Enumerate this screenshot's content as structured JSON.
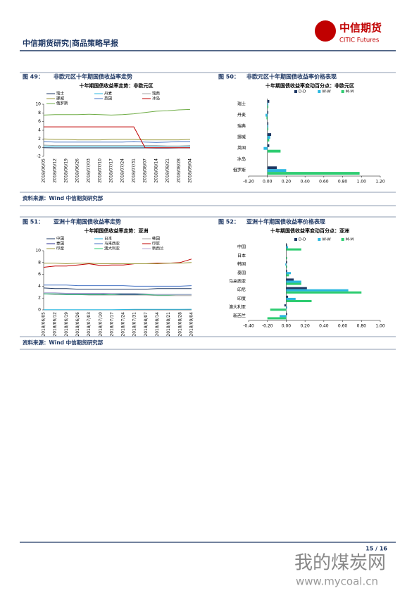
{
  "header": {
    "title": "中信期货研究|商品策略早报",
    "logo_cn": "中信期货",
    "logo_en": "CITIC Futures"
  },
  "figures": [
    {
      "label": "图 49：",
      "caption": "非欧元区十年期国债收益率走势"
    },
    {
      "label": "图 50：",
      "caption": "非欧元区十年期国债收益率价格表现"
    },
    {
      "label": "图 51：",
      "caption": "亚洲十年期国债收益率走势"
    },
    {
      "label": "图 52：",
      "caption": "亚洲十年期国债收益率价格表现"
    }
  ],
  "sources": [
    "资料来源：Wind 中信期货研究部",
    "资料来源：Wind 中信期货研究部"
  ],
  "page": "15 / 16",
  "watermark": {
    "cn": "我的煤炭网",
    "url": "www.mycoal.cn"
  },
  "chart_data": [
    {
      "type": "line",
      "title": "十年期国债收益率走势：非欧元区",
      "legend": "top",
      "categories": [
        "2018/06/05",
        "2018/06/12",
        "2018/06/19",
        "2018/06/26",
        "2018/07/03",
        "2018/07/10",
        "2018/07/17",
        "2018/07/24",
        "2018/07/31",
        "2018/08/07",
        "2018/08/14",
        "2018/08/21",
        "2018/08/28",
        "2018/09/04"
      ],
      "ylim": [
        -2,
        10
      ],
      "yticks": [
        -2,
        0,
        2,
        4,
        6,
        8,
        10
      ],
      "series": [
        {
          "name": "瑞士",
          "color": "#1f3864",
          "values": [
            0.0,
            -0.05,
            -0.05,
            -0.05,
            -0.05,
            -0.05,
            -0.05,
            -0.05,
            -0.05,
            -0.05,
            -0.1,
            -0.1,
            -0.05,
            -0.05
          ]
        },
        {
          "name": "丹麦",
          "color": "#2ab7e0",
          "values": [
            0.4,
            0.3,
            0.3,
            0.3,
            0.3,
            0.3,
            0.3,
            0.3,
            0.3,
            0.3,
            0.3,
            0.3,
            0.3,
            0.3
          ]
        },
        {
          "name": "瑞典",
          "color": "#a6a6a6",
          "values": [
            0.6,
            0.5,
            0.5,
            0.5,
            0.5,
            0.5,
            0.5,
            0.5,
            0.5,
            0.5,
            0.5,
            0.4,
            0.4,
            0.5
          ]
        },
        {
          "name": "挪威",
          "color": "#9c9a3c",
          "values": [
            2,
            1.9,
            1.9,
            1.8,
            1.8,
            1.8,
            1.9,
            1.9,
            1.9,
            1.8,
            1.8,
            1.8,
            1.8,
            1.9
          ]
        },
        {
          "name": "英国",
          "color": "#4472c4",
          "values": [
            1.4,
            1.3,
            1.3,
            1.3,
            1.3,
            1.3,
            1.3,
            1.3,
            1.4,
            1.3,
            1.2,
            1.3,
            1.4,
            1.4
          ]
        },
        {
          "name": "冰岛",
          "color": "#c00000",
          "values": [
            4.8,
            4.8,
            4.8,
            4.8,
            4.8,
            4.8,
            4.8,
            4.8,
            4.8,
            0,
            0,
            0,
            0,
            0
          ]
        },
        {
          "name": "俄罗斯",
          "color": "#70ad47",
          "values": [
            7.5,
            7.6,
            7.6,
            7.6,
            7.7,
            7.6,
            7.5,
            7.6,
            7.8,
            8.1,
            8.4,
            8.5,
            8.7,
            8.8
          ]
        }
      ]
    },
    {
      "type": "hbar",
      "title": "十年期国债收益率变动百分点：非欧元区",
      "legend": "top",
      "categories": [
        "瑞士",
        "丹麦",
        "瑞典",
        "挪威",
        "英国",
        "冰岛",
        "俄罗斯"
      ],
      "xlim": [
        -0.2,
        1.2
      ],
      "xticks": [
        {
          "value": -0.2,
          "label": "-0.20"
        },
        {
          "value": 0,
          "label": "0.00"
        },
        {
          "value": 0.2,
          "label": "0.20"
        },
        {
          "value": 0.4,
          "label": "0.40"
        },
        {
          "value": 0.6,
          "label": "0.60"
        },
        {
          "value": 0.8,
          "label": "0.80"
        },
        {
          "value": 1.0,
          "label": "1.00"
        },
        {
          "value": 1.2,
          "label": "1.20"
        }
      ],
      "series": [
        {
          "name": "D-D",
          "color": "#1f3864",
          "values": [
            0.02,
            0.01,
            0.01,
            0.04,
            0.02,
            0,
            0.1
          ]
        },
        {
          "name": "W-W",
          "color": "#2ab7e0",
          "values": [
            0.01,
            -0.02,
            0.01,
            0.03,
            -0.04,
            0,
            0.2
          ]
        },
        {
          "name": "M-M",
          "color": "#2ecc71",
          "values": [
            0.01,
            -0.01,
            0.01,
            0.02,
            0.14,
            0,
            0.98
          ]
        }
      ]
    },
    {
      "type": "line",
      "title": "十年期国债收益率走势：亚洲",
      "legend": "top",
      "categories": [
        "2018/06/05",
        "2018/06/12",
        "2018/06/19",
        "2018/06/26",
        "2018/07/03",
        "2018/07/10",
        "2018/07/17",
        "2018/07/24",
        "2018/07/31",
        "2018/08/07",
        "2018/08/14",
        "2018/08/21",
        "2018/08/28",
        "2018/09/04"
      ],
      "ylim": [
        0,
        10
      ],
      "yticks": [
        0,
        2,
        4,
        6,
        8,
        10
      ],
      "series": [
        {
          "name": "中国",
          "color": "#1f3864",
          "values": [
            3.7,
            3.6,
            3.6,
            3.5,
            3.5,
            3.5,
            3.5,
            3.5,
            3.5,
            3.5,
            3.6,
            3.6,
            3.6,
            3.6
          ]
        },
        {
          "name": "日本",
          "color": "#2ab7e0",
          "values": [
            0.04,
            0.04,
            0.03,
            0.03,
            0.03,
            0.04,
            0.04,
            0.06,
            0.1,
            0.1,
            0.1,
            0.09,
            0.1,
            0.11
          ]
        },
        {
          "name": "韩国",
          "color": "#a6a6a6",
          "values": [
            2.7,
            2.6,
            2.6,
            2.6,
            2.5,
            2.5,
            2.5,
            2.5,
            2.5,
            2.5,
            2.4,
            2.4,
            2.4,
            2.4
          ]
        },
        {
          "name": "泰国",
          "color": "#2e3192",
          "values": [
            2.7,
            2.7,
            2.7,
            2.7,
            2.7,
            2.7,
            2.6,
            2.6,
            2.6,
            2.6,
            2.6,
            2.6,
            2.6,
            2.6
          ]
        },
        {
          "name": "马来西亚",
          "color": "#4472c4",
          "values": [
            4.2,
            4.2,
            4.2,
            4.1,
            4.1,
            4.1,
            4.1,
            4.1,
            4.0,
            4.0,
            4.0,
            4.0,
            4.0,
            4.1
          ]
        },
        {
          "name": "印尼",
          "color": "#c00000",
          "values": [
            7.2,
            7.4,
            7.4,
            7.6,
            7.8,
            7.5,
            7.6,
            7.6,
            7.8,
            7.8,
            7.9,
            7.9,
            8.0,
            8.6
          ]
        },
        {
          "name": "印度",
          "color": "#9c9a3c",
          "values": [
            7.9,
            7.9,
            7.8,
            7.9,
            7.9,
            7.8,
            7.8,
            7.8,
            7.8,
            7.8,
            7.8,
            7.9,
            7.9,
            8.0
          ]
        },
        {
          "name": "澳大利亚",
          "color": "#2ecc71",
          "values": [
            2.7,
            2.7,
            2.6,
            2.6,
            2.6,
            2.6,
            2.6,
            2.7,
            2.7,
            2.6,
            2.5,
            2.5,
            2.6,
            2.6
          ]
        },
        {
          "name": "新西兰",
          "color": "#b4a7d6",
          "values": [
            2.9,
            2.9,
            2.8,
            2.8,
            2.8,
            2.8,
            2.8,
            2.8,
            2.8,
            2.7,
            2.6,
            2.6,
            2.6,
            2.6
          ]
        }
      ]
    },
    {
      "type": "hbar",
      "title": "十年期国债收益率变动百分点：亚洲",
      "legend": "top",
      "categories": [
        "中国",
        "日本",
        "韩国",
        "泰国",
        "马来西亚",
        "印尼",
        "印度",
        "澳大利亚",
        "新西兰"
      ],
      "xlim": [
        -0.4,
        1.0
      ],
      "xticks": [
        {
          "value": -0.4,
          "label": "-0.40"
        },
        {
          "value": -0.2,
          "label": "-0.20"
        },
        {
          "value": 0,
          "label": "0.00"
        },
        {
          "value": 0.2,
          "label": "0.20"
        },
        {
          "value": 0.4,
          "label": "0.40"
        },
        {
          "value": 0.6,
          "label": "0.60"
        },
        {
          "value": 0.8,
          "label": "0.80"
        },
        {
          "value": 1.0,
          "label": "1.00"
        }
      ],
      "series": [
        {
          "name": "D-D",
          "color": "#1f3864",
          "values": [
            0.01,
            0,
            0.01,
            0.01,
            0.08,
            0.22,
            0.02,
            -0.02,
            0.01
          ]
        },
        {
          "name": "W-W",
          "color": "#2ab7e0",
          "values": [
            0.02,
            0,
            -0.01,
            0.05,
            0.16,
            0.66,
            0.1,
            0.01,
            -0.07
          ]
        },
        {
          "name": "M-M",
          "color": "#2ecc71",
          "values": [
            0.16,
            0.01,
            0.01,
            0.03,
            0.16,
            0.8,
            0.27,
            -0.17,
            -0.2
          ]
        }
      ]
    }
  ]
}
